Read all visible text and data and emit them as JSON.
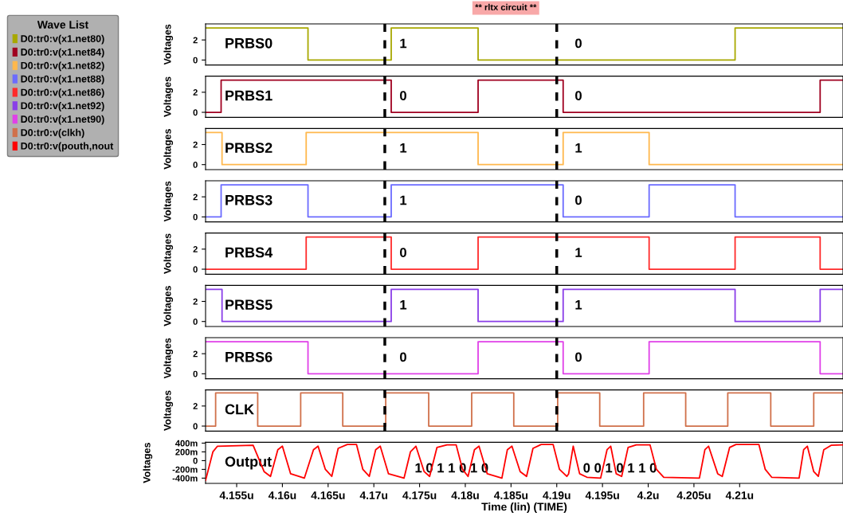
{
  "chart_data": [
    {
      "type": "step",
      "title": "** rltx circuit **",
      "legend_title": "Wave List",
      "legend": "left",
      "ylabel": "Voltages",
      "tick_labels": "y",
      "xlim": [
        4.1516,
        4.2213
      ],
      "ylim": [
        -0.5,
        3.6
      ],
      "yticks": [
        0,
        2
      ],
      "grid": false,
      "series": [
        {
          "name": "D0:tr0:v(x1.net80)",
          "color": "#a8a800",
          "x": [
            4.1516,
            4.1628,
            4.1719,
            4.1814,
            4.2095,
            4.2213
          ],
          "values": [
            3.2,
            0,
            3.2,
            0,
            3.2,
            3.2
          ]
        }
      ],
      "annotations": [
        "PRBS0",
        "1",
        "0"
      ],
      "ref_lines": [
        {
          "axis": "x",
          "value": 4.1712,
          "color": "#000000",
          "line_style": "dashed"
        },
        {
          "axis": "x",
          "value": 4.19,
          "color": "#000000",
          "line_style": "dashed"
        }
      ]
    },
    {
      "type": "step",
      "legend": "left",
      "ylabel": "Voltages",
      "tick_labels": "y",
      "xlim": [
        4.1516,
        4.2213
      ],
      "ylim": [
        -0.5,
        3.6
      ],
      "yticks": [
        0,
        2
      ],
      "grid": false,
      "series": [
        {
          "name": "D0:tr0:v(x1.net84)",
          "color": "#a00020",
          "x": [
            4.1516,
            4.1533,
            4.1719,
            4.1814,
            4.1907,
            4.2188,
            4.2213
          ],
          "values": [
            0,
            3.2,
            0,
            3.2,
            0,
            3.2,
            3.2
          ]
        }
      ],
      "annotations": [
        "PRBS1",
        "0",
        "0"
      ],
      "ref_lines": [
        {
          "axis": "x",
          "value": 4.1712,
          "color": "#000000",
          "line_style": "dashed"
        },
        {
          "axis": "x",
          "value": 4.19,
          "color": "#000000",
          "line_style": "dashed"
        }
      ]
    },
    {
      "type": "step",
      "legend": "left",
      "ylabel": "Voltages",
      "tick_labels": "y",
      "xlim": [
        4.1516,
        4.2213
      ],
      "ylim": [
        -0.5,
        3.6
      ],
      "yticks": [
        0,
        2
      ],
      "grid": false,
      "series": [
        {
          "name": "D0:tr0:v(x1.net82)",
          "color": "#ffb84d",
          "x": [
            4.1516,
            4.1534,
            4.1626,
            4.1814,
            4.1907,
            4.2001,
            4.2213
          ],
          "values": [
            3.2,
            0,
            3.2,
            0,
            3.2,
            0,
            0
          ]
        }
      ],
      "annotations": [
        "PRBS2",
        "1",
        "1"
      ],
      "ref_lines": [
        {
          "axis": "x",
          "value": 4.1712,
          "color": "#000000",
          "line_style": "dashed"
        },
        {
          "axis": "x",
          "value": 4.19,
          "color": "#000000",
          "line_style": "dashed"
        }
      ]
    },
    {
      "type": "step",
      "legend": "left",
      "ylabel": "Voltages",
      "tick_labels": "y",
      "xlim": [
        4.1516,
        4.2213
      ],
      "ylim": [
        -0.5,
        3.6
      ],
      "yticks": [
        0,
        2
      ],
      "grid": false,
      "series": [
        {
          "name": "D0:tr0:v(x1.net88)",
          "color": "#6b6bff",
          "x": [
            4.1516,
            4.1533,
            4.1628,
            4.1719,
            4.1907,
            4.2001,
            4.2095,
            4.2213
          ],
          "values": [
            0,
            3.2,
            0,
            3.2,
            0,
            3.2,
            0,
            0
          ]
        }
      ],
      "annotations": [
        "PRBS3",
        "1",
        "0"
      ],
      "ref_lines": [
        {
          "axis": "x",
          "value": 4.1712,
          "color": "#000000",
          "line_style": "dashed"
        },
        {
          "axis": "x",
          "value": 4.19,
          "color": "#000000",
          "line_style": "dashed"
        }
      ]
    },
    {
      "type": "step",
      "legend": "left",
      "ylabel": "Voltages",
      "tick_labels": "y",
      "xlim": [
        4.1516,
        4.2213
      ],
      "ylim": [
        -0.5,
        3.6
      ],
      "yticks": [
        0,
        2
      ],
      "grid": false,
      "series": [
        {
          "name": "D0:tr0:v(x1.net86)",
          "color": "#ff2a2a",
          "x": [
            4.1516,
            4.1626,
            4.1719,
            4.1814,
            4.2001,
            4.2095,
            4.2188,
            4.2213
          ],
          "values": [
            0,
            3.2,
            0,
            3.2,
            0,
            3.2,
            0,
            0
          ]
        }
      ],
      "annotations": [
        "PRBS4",
        "0",
        "1"
      ],
      "ref_lines": [
        {
          "axis": "x",
          "value": 4.1712,
          "color": "#000000",
          "line_style": "dashed"
        },
        {
          "axis": "x",
          "value": 4.19,
          "color": "#000000",
          "line_style": "dashed"
        }
      ]
    },
    {
      "type": "step",
      "legend": "left",
      "ylabel": "Voltages",
      "tick_labels": "y",
      "xlim": [
        4.1516,
        4.2213
      ],
      "ylim": [
        -0.5,
        3.6
      ],
      "yticks": [
        0,
        2
      ],
      "grid": false,
      "series": [
        {
          "name": "D0:tr0:v(x1.net92)",
          "color": "#8a3ee8",
          "x": [
            4.1516,
            4.1534,
            4.1719,
            4.1814,
            4.1907,
            4.2095,
            4.2188,
            4.2213
          ],
          "values": [
            3.2,
            0,
            3.2,
            0,
            3.2,
            0,
            3.2,
            3.2
          ]
        }
      ],
      "annotations": [
        "PRBS5",
        "1",
        "1"
      ],
      "ref_lines": [
        {
          "axis": "x",
          "value": 4.1712,
          "color": "#000000",
          "line_style": "dashed"
        },
        {
          "axis": "x",
          "value": 4.19,
          "color": "#000000",
          "line_style": "dashed"
        }
      ]
    },
    {
      "type": "step",
      "legend": "left",
      "ylabel": "Voltages",
      "tick_labels": "y",
      "xlim": [
        4.1516,
        4.2213
      ],
      "ylim": [
        -0.5,
        3.6
      ],
      "yticks": [
        0,
        2
      ],
      "grid": false,
      "series": [
        {
          "name": "D0:tr0:v(x1.net90)",
          "color": "#e040e8",
          "x": [
            4.1516,
            4.1628,
            4.1814,
            4.1907,
            4.2001,
            4.2188,
            4.2213
          ],
          "values": [
            3.2,
            0,
            3.2,
            0,
            3.2,
            0,
            0
          ]
        }
      ],
      "annotations": [
        "PRBS6",
        "0",
        "0"
      ],
      "ref_lines": [
        {
          "axis": "x",
          "value": 4.1712,
          "color": "#000000",
          "line_style": "dashed"
        },
        {
          "axis": "x",
          "value": 4.19,
          "color": "#000000",
          "line_style": "dashed"
        }
      ]
    },
    {
      "type": "step",
      "legend": "left",
      "ylabel": "Voltages",
      "tick_labels": "y",
      "xlim": [
        4.1516,
        4.2213
      ],
      "ylim": [
        -0.5,
        3.6
      ],
      "yticks": [
        0,
        2
      ],
      "grid": false,
      "series": [
        {
          "name": "D0:tr0:v(clkh)",
          "color": "#d0704a",
          "x": [
            4.1516,
            4.1527,
            4.1573,
            4.162,
            4.1666,
            4.1713,
            4.176,
            4.1807,
            4.1853,
            4.1901,
            4.1947,
            4.1995,
            4.2041,
            4.2087,
            4.2134,
            4.2181,
            4.2213
          ],
          "values": [
            0,
            3.3,
            0,
            3.3,
            0,
            3.3,
            0,
            3.3,
            0,
            3.3,
            0,
            3.3,
            0,
            3.3,
            0,
            3.3,
            3.3
          ]
        }
      ],
      "annotations": [
        "CLK"
      ],
      "ref_lines": [
        {
          "axis": "x",
          "value": 4.1712,
          "color": "#000000",
          "line_style": "dashed"
        },
        {
          "axis": "x",
          "value": 4.19,
          "color": "#000000",
          "line_style": "dashed"
        }
      ]
    },
    {
      "type": "line",
      "legend": "left",
      "ylabel": "Voltages",
      "xlabel": "Time (lin) (TIME)",
      "xlim": [
        4.1516,
        4.2213
      ],
      "ylim": [
        -520,
        420
      ],
      "grid": false,
      "xticks": [
        {
          "value": 4.155,
          "label": "4.155u"
        },
        {
          "value": 4.16,
          "label": "4.16u"
        },
        {
          "value": 4.165,
          "label": "4.165u"
        },
        {
          "value": 4.17,
          "label": "4.17u"
        },
        {
          "value": 4.175,
          "label": "4.175u"
        },
        {
          "value": 4.18,
          "label": "4.18u"
        },
        {
          "value": 4.185,
          "label": "4.185u"
        },
        {
          "value": 4.19,
          "label": "4.19u"
        },
        {
          "value": 4.195,
          "label": "4.195u"
        },
        {
          "value": 4.2,
          "label": "4.2u"
        },
        {
          "value": 4.205,
          "label": "4.205u"
        },
        {
          "value": 4.21,
          "label": "4.21u"
        }
      ],
      "yticks": [
        {
          "value": 400,
          "label": "400m"
        },
        {
          "value": 200,
          "label": "200m"
        },
        0,
        {
          "value": -200,
          "label": "-200m"
        },
        {
          "value": -400,
          "label": "-400m"
        }
      ],
      "series": [
        {
          "name": "D0:tr0:v(pouth,nout",
          "color": "#ff0000",
          "x": [
            4.1516,
            4.1524,
            4.1529,
            4.1568,
            4.158,
            4.1587,
            4.1595,
            4.16,
            4.1609,
            4.1624,
            4.1634,
            4.1639,
            4.1647,
            4.1654,
            4.1661,
            4.1671,
            4.1681,
            4.1688,
            4.1695,
            4.1702,
            4.1707,
            4.1716,
            4.1733,
            4.174,
            4.1746,
            4.1755,
            4.1761,
            4.1769,
            4.178,
            4.179,
            4.1797,
            4.1803,
            4.181,
            4.1815,
            4.1824,
            4.184,
            4.1846,
            4.1851,
            4.186,
            4.1867,
            4.1874,
            4.1883,
            4.1896,
            4.1903,
            4.1911,
            4.1913,
            4.1918,
            4.1925,
            4.1933,
            4.1948,
            4.1955,
            4.1959,
            4.1965,
            4.1971,
            4.1978,
            4.1987,
            4.2002,
            4.2009,
            4.2017,
            4.2056,
            4.2062,
            4.2066,
            4.2076,
            4.2081,
            4.2089,
            4.2096,
            4.2121,
            4.2128,
            4.2135,
            4.2165,
            4.217,
            4.2174,
            4.2181,
            4.2186,
            4.2192,
            4.22,
            4.2213
          ],
          "values": [
            -450,
            200,
            330,
            350,
            -250,
            -360,
            250,
            330,
            -300,
            -400,
            250,
            330,
            -200,
            -360,
            280,
            370,
            370,
            -200,
            -360,
            250,
            330,
            -300,
            -400,
            200,
            330,
            -250,
            -360,
            300,
            360,
            360,
            -200,
            -360,
            250,
            330,
            -300,
            -400,
            250,
            330,
            -250,
            -360,
            280,
            370,
            370,
            -200,
            -360,
            -300,
            330,
            -300,
            -380,
            -400,
            250,
            330,
            -300,
            -360,
            300,
            360,
            360,
            -200,
            -380,
            -400,
            250,
            330,
            -300,
            -360,
            300,
            370,
            370,
            -200,
            -380,
            -400,
            250,
            330,
            -250,
            -360,
            250,
            350,
            360
          ]
        }
      ],
      "annotations": [
        "Output",
        "1 0 1 1 0 1 0",
        "0 0 1 0 1 1 0"
      ]
    }
  ]
}
